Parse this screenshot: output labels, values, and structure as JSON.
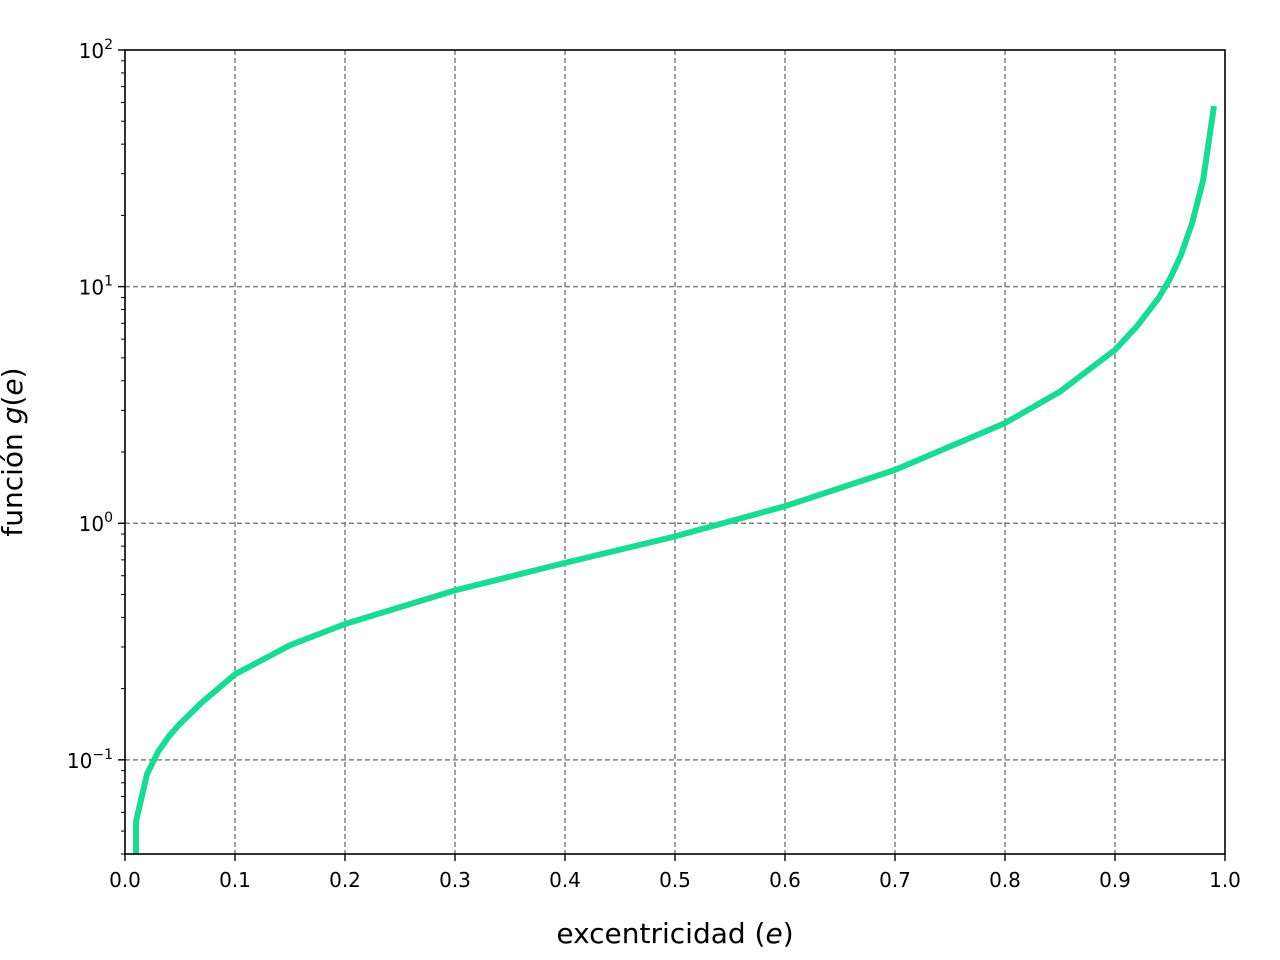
{
  "chart_data": {
    "type": "line",
    "title": "",
    "xlabel": {
      "text": "excentricidad (",
      "var": "e",
      "close": ")"
    },
    "ylabel": {
      "text": "función ",
      "var": "g",
      "mid": "(",
      "var2": "e",
      "close": ")"
    },
    "xlim": [
      0.0,
      1.0
    ],
    "ylim": [
      0.04,
      100
    ],
    "yscale": "log",
    "grid": true,
    "legend": "none",
    "line_color": "#1adb94",
    "x_ticks": [
      "0.0",
      "0.1",
      "0.2",
      "0.3",
      "0.4",
      "0.5",
      "0.6",
      "0.7",
      "0.8",
      "0.9",
      "1.0"
    ],
    "y_ticks": [
      {
        "value": 0.1,
        "base": "10",
        "exp": "−1"
      },
      {
        "value": 1,
        "base": "10",
        "exp": "0"
      },
      {
        "value": 10,
        "base": "10",
        "exp": "1"
      },
      {
        "value": 100,
        "base": "10",
        "exp": "2"
      }
    ],
    "series": [
      {
        "x": [
          0.01,
          0.01,
          0.02,
          0.03,
          0.04,
          0.05,
          0.07,
          0.1,
          0.15,
          0.2,
          0.3,
          0.4,
          0.5,
          0.6,
          0.7,
          0.8,
          0.85,
          0.9,
          0.92,
          0.94,
          0.95,
          0.96,
          0.97,
          0.98,
          0.99
        ],
        "y": [
          0.04,
          0.055,
          0.087,
          0.108,
          0.126,
          0.142,
          0.175,
          0.23,
          0.305,
          0.375,
          0.52,
          0.68,
          0.88,
          1.18,
          1.68,
          2.65,
          3.6,
          5.4,
          6.8,
          9.0,
          10.8,
          13.6,
          18.5,
          28.0,
          58.0
        ]
      }
    ]
  }
}
